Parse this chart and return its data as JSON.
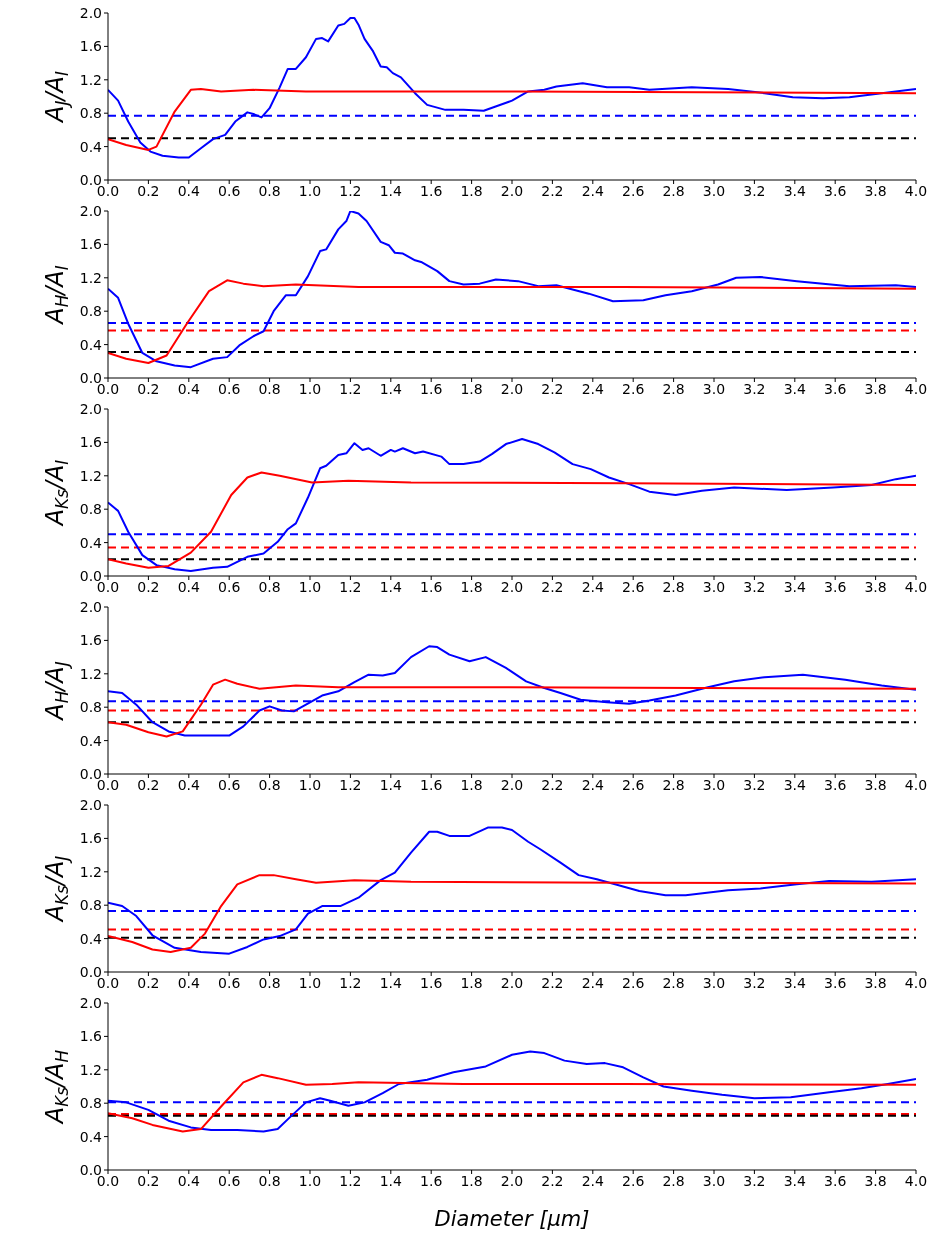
{
  "chart_data": [
    {
      "type": "line",
      "ylabel": "A$_{J}$/A$_{I}$",
      "xlim": [
        0,
        4
      ],
      "ylim": [
        0,
        2
      ],
      "xticks": [
        {
          "value": 0,
          "label": "0.0"
        },
        {
          "value": 0.2,
          "label": "0.2"
        },
        {
          "value": 0.4,
          "label": "0.4"
        },
        {
          "value": 0.6,
          "label": "0.6"
        },
        {
          "value": 0.8,
          "label": "0.8"
        },
        {
          "value": 1,
          "label": "1.0"
        },
        {
          "value": 1.2,
          "label": "1.2"
        },
        {
          "value": 1.4,
          "label": "1.4"
        },
        {
          "value": 1.6,
          "label": "1.6"
        },
        {
          "value": 1.8,
          "label": "1.8"
        },
        {
          "value": 2,
          "label": "2.0"
        },
        {
          "value": 2.2,
          "label": "2.2"
        },
        {
          "value": 2.4,
          "label": "2.4"
        },
        {
          "value": 2.6,
          "label": "2.6"
        },
        {
          "value": 2.8,
          "label": "2.8"
        },
        {
          "value": 3,
          "label": "3.0"
        },
        {
          "value": 3.2,
          "label": "3.2"
        },
        {
          "value": 3.4,
          "label": "3.4"
        },
        {
          "value": 3.6,
          "label": "3.6"
        },
        {
          "value": 3.8,
          "label": "3.8"
        },
        {
          "value": 4,
          "label": "4.0"
        }
      ],
      "yticks": [
        {
          "value": 0,
          "label": "0.0"
        },
        {
          "value": 0.4,
          "label": "0.4"
        },
        {
          "value": 0.8,
          "label": "0.8"
        },
        {
          "value": 1.2,
          "label": "1.2"
        },
        {
          "value": 1.6,
          "label": "1.6"
        },
        {
          "value": 2,
          "label": "2.0"
        }
      ],
      "grid": false,
      "line_style": "solid",
      "marker": "none",
      "series": [
        {
          "color": "#0000ff",
          "x": [
            0,
            0.05,
            0.1,
            0.16,
            0.21,
            0.27,
            0.35,
            0.4,
            0.46,
            0.52,
            0.58,
            0.63,
            0.69,
            0.72,
            0.76,
            0.8,
            0.85,
            0.89,
            0.93,
            0.98,
            1.03,
            1.06,
            1.09,
            1.14,
            1.17,
            1.2,
            1.22,
            1.24,
            1.27,
            1.31,
            1.35,
            1.38,
            1.41,
            1.45,
            1.52,
            1.58,
            1.67,
            1.76,
            1.86,
            2,
            2.08,
            2.16,
            2.22,
            2.35,
            2.47,
            2.58,
            2.68,
            2.89,
            3.07,
            3.25,
            3.39,
            3.54,
            3.67,
            3.83,
            4
          ],
          "values": [
            1.08,
            0.95,
            0.7,
            0.45,
            0.34,
            0.29,
            0.27,
            0.27,
            0.38,
            0.49,
            0.54,
            0.7,
            0.81,
            0.79,
            0.75,
            0.86,
            1.11,
            1.33,
            1.33,
            1.47,
            1.69,
            1.7,
            1.66,
            1.85,
            1.87,
            1.94,
            1.94,
            1.86,
            1.69,
            1.55,
            1.36,
            1.35,
            1.28,
            1.23,
            1.04,
            0.9,
            0.84,
            0.84,
            0.83,
            0.95,
            1.06,
            1.08,
            1.12,
            1.16,
            1.11,
            1.11,
            1.08,
            1.11,
            1.09,
            1.04,
            0.99,
            0.98,
            0.99,
            1.04,
            1.09
          ]
        },
        {
          "color": "#ff0000",
          "x": [
            0,
            0.09,
            0.2,
            0.24,
            0.33,
            0.41,
            0.46,
            0.56,
            0.72,
            0.98,
            2.03,
            4
          ],
          "values": [
            0.49,
            0.42,
            0.36,
            0.4,
            0.82,
            1.08,
            1.09,
            1.06,
            1.08,
            1.06,
            1.06,
            1.04
          ]
        }
      ],
      "ref_lines": [
        {
          "axis": "y",
          "value": 0.77,
          "color": "#0000ff",
          "line_style": "dashed"
        },
        {
          "axis": "y",
          "value": 0.5,
          "color": "#000000",
          "line_style": "dashed"
        }
      ]
    },
    {
      "type": "line",
      "ylabel": "A$_{H}$/A$_{I}$",
      "xlim": [
        0,
        4
      ],
      "ylim": [
        0,
        2
      ],
      "xticks": [
        {
          "value": 0,
          "label": "0.0"
        },
        {
          "value": 0.2,
          "label": "0.2"
        },
        {
          "value": 0.4,
          "label": "0.4"
        },
        {
          "value": 0.6,
          "label": "0.6"
        },
        {
          "value": 0.8,
          "label": "0.8"
        },
        {
          "value": 1,
          "label": "1.0"
        },
        {
          "value": 1.2,
          "label": "1.2"
        },
        {
          "value": 1.4,
          "label": "1.4"
        },
        {
          "value": 1.6,
          "label": "1.6"
        },
        {
          "value": 1.8,
          "label": "1.8"
        },
        {
          "value": 2,
          "label": "2.0"
        },
        {
          "value": 2.2,
          "label": "2.2"
        },
        {
          "value": 2.4,
          "label": "2.4"
        },
        {
          "value": 2.6,
          "label": "2.6"
        },
        {
          "value": 2.8,
          "label": "2.8"
        },
        {
          "value": 3,
          "label": "3.0"
        },
        {
          "value": 3.2,
          "label": "3.2"
        },
        {
          "value": 3.4,
          "label": "3.4"
        },
        {
          "value": 3.6,
          "label": "3.6"
        },
        {
          "value": 3.8,
          "label": "3.8"
        },
        {
          "value": 4,
          "label": "4.0"
        }
      ],
      "yticks": [
        {
          "value": 0,
          "label": "0.0"
        },
        {
          "value": 0.4,
          "label": "0.4"
        },
        {
          "value": 0.8,
          "label": "0.8"
        },
        {
          "value": 1.2,
          "label": "1.2"
        },
        {
          "value": 1.6,
          "label": "1.6"
        },
        {
          "value": 2,
          "label": "2.0"
        }
      ],
      "grid": false,
      "line_style": "solid",
      "marker": "none",
      "series": [
        {
          "color": "#0000ff",
          "x": [
            0,
            0.05,
            0.1,
            0.17,
            0.24,
            0.33,
            0.41,
            0.52,
            0.59,
            0.65,
            0.72,
            0.77,
            0.82,
            0.88,
            0.93,
            0.99,
            1.05,
            1.08,
            1.14,
            1.18,
            1.2,
            1.24,
            1.28,
            1.35,
            1.39,
            1.42,
            1.46,
            1.52,
            1.55,
            1.63,
            1.69,
            1.76,
            1.84,
            1.92,
            2.03,
            2.13,
            2.22,
            2.38,
            2.5,
            2.65,
            2.76,
            2.89,
            3.02,
            3.11,
            3.23,
            3.41,
            3.67,
            3.9,
            4
          ],
          "values": [
            1.07,
            0.96,
            0.65,
            0.3,
            0.2,
            0.15,
            0.13,
            0.23,
            0.25,
            0.39,
            0.5,
            0.56,
            0.8,
            0.99,
            0.99,
            1.22,
            1.52,
            1.54,
            1.78,
            1.88,
            2,
            1.97,
            1.88,
            1.63,
            1.59,
            1.5,
            1.49,
            1.41,
            1.39,
            1.28,
            1.16,
            1.12,
            1.13,
            1.18,
            1.16,
            1.1,
            1.11,
            1.01,
            0.92,
            0.93,
            0.99,
            1.04,
            1.12,
            1.2,
            1.21,
            1.16,
            1.1,
            1.11,
            1.09
          ]
        },
        {
          "color": "#ff0000",
          "x": [
            0,
            0.09,
            0.2,
            0.29,
            0.39,
            0.5,
            0.59,
            0.67,
            0.77,
            0.93,
            1.24,
            2.55,
            4
          ],
          "values": [
            0.3,
            0.23,
            0.18,
            0.27,
            0.65,
            1.04,
            1.17,
            1.13,
            1.1,
            1.12,
            1.09,
            1.09,
            1.07
          ]
        }
      ],
      "ref_lines": [
        {
          "axis": "y",
          "value": 0.66,
          "color": "#0000ff",
          "line_style": "dashed"
        },
        {
          "axis": "y",
          "value": 0.57,
          "color": "#ff0000",
          "line_style": "dashed"
        },
        {
          "axis": "y",
          "value": 0.31,
          "color": "#000000",
          "line_style": "dashed"
        }
      ]
    },
    {
      "type": "line",
      "ylabel": "A$_{Ks}$/A$_{I}$",
      "xlim": [
        0,
        4
      ],
      "ylim": [
        0,
        2
      ],
      "xticks": [
        {
          "value": 0,
          "label": "0.0"
        },
        {
          "value": 0.2,
          "label": "0.2"
        },
        {
          "value": 0.4,
          "label": "0.4"
        },
        {
          "value": 0.6,
          "label": "0.6"
        },
        {
          "value": 0.8,
          "label": "0.8"
        },
        {
          "value": 1,
          "label": "1.0"
        },
        {
          "value": 1.2,
          "label": "1.2"
        },
        {
          "value": 1.4,
          "label": "1.4"
        },
        {
          "value": 1.6,
          "label": "1.6"
        },
        {
          "value": 1.8,
          "label": "1.8"
        },
        {
          "value": 2,
          "label": "2.0"
        },
        {
          "value": 2.2,
          "label": "2.2"
        },
        {
          "value": 2.4,
          "label": "2.4"
        },
        {
          "value": 2.6,
          "label": "2.6"
        },
        {
          "value": 2.8,
          "label": "2.8"
        },
        {
          "value": 3,
          "label": "3.0"
        },
        {
          "value": 3.2,
          "label": "3.2"
        },
        {
          "value": 3.4,
          "label": "3.4"
        },
        {
          "value": 3.6,
          "label": "3.6"
        },
        {
          "value": 3.8,
          "label": "3.8"
        },
        {
          "value": 4,
          "label": "4.0"
        }
      ],
      "yticks": [
        {
          "value": 0,
          "label": "0.0"
        },
        {
          "value": 0.4,
          "label": "0.4"
        },
        {
          "value": 0.8,
          "label": "0.8"
        },
        {
          "value": 1.2,
          "label": "1.2"
        },
        {
          "value": 1.6,
          "label": "1.6"
        },
        {
          "value": 2,
          "label": "2.0"
        }
      ],
      "grid": false,
      "line_style": "solid",
      "marker": "none",
      "series": [
        {
          "color": "#0000ff",
          "x": [
            0,
            0.05,
            0.1,
            0.17,
            0.24,
            0.33,
            0.41,
            0.52,
            0.59,
            0.69,
            0.77,
            0.84,
            0.89,
            0.93,
            0.99,
            1.05,
            1.08,
            1.14,
            1.18,
            1.22,
            1.26,
            1.29,
            1.35,
            1.4,
            1.42,
            1.46,
            1.52,
            1.56,
            1.65,
            1.69,
            1.76,
            1.84,
            1.9,
            1.97,
            2.05,
            2.13,
            2.21,
            2.3,
            2.39,
            2.48,
            2.58,
            2.68,
            2.81,
            2.94,
            3.1,
            3.36,
            3.59,
            3.78,
            3.9,
            4
          ],
          "values": [
            0.88,
            0.78,
            0.53,
            0.25,
            0.13,
            0.08,
            0.06,
            0.1,
            0.11,
            0.23,
            0.27,
            0.41,
            0.56,
            0.63,
            0.94,
            1.29,
            1.32,
            1.45,
            1.47,
            1.59,
            1.51,
            1.53,
            1.44,
            1.51,
            1.49,
            1.53,
            1.47,
            1.49,
            1.43,
            1.34,
            1.34,
            1.37,
            1.46,
            1.58,
            1.64,
            1.58,
            1.48,
            1.34,
            1.28,
            1.18,
            1.1,
            1.01,
            0.97,
            1.02,
            1.06,
            1.03,
            1.06,
            1.09,
            1.16,
            1.2
          ]
        },
        {
          "color": "#ff0000",
          "x": [
            0,
            0.09,
            0.2,
            0.3,
            0.41,
            0.51,
            0.61,
            0.69,
            0.76,
            0.85,
            1.01,
            1.19,
            1.5,
            2.55,
            4
          ],
          "values": [
            0.2,
            0.15,
            0.1,
            0.12,
            0.28,
            0.53,
            0.97,
            1.18,
            1.24,
            1.2,
            1.12,
            1.14,
            1.12,
            1.11,
            1.09
          ]
        }
      ],
      "ref_lines": [
        {
          "axis": "y",
          "value": 0.5,
          "color": "#0000ff",
          "line_style": "dashed"
        },
        {
          "axis": "y",
          "value": 0.34,
          "color": "#ff0000",
          "line_style": "dashed"
        },
        {
          "axis": "y",
          "value": 0.2,
          "color": "#000000",
          "line_style": "dashed"
        }
      ]
    },
    {
      "type": "line",
      "ylabel": "A$_{H}$/A$_{J}$",
      "xlim": [
        0,
        4
      ],
      "ylim": [
        0,
        2
      ],
      "xticks": [
        {
          "value": 0,
          "label": "0.0"
        },
        {
          "value": 0.2,
          "label": "0.2"
        },
        {
          "value": 0.4,
          "label": "0.4"
        },
        {
          "value": 0.6,
          "label": "0.6"
        },
        {
          "value": 0.8,
          "label": "0.8"
        },
        {
          "value": 1,
          "label": "1.0"
        },
        {
          "value": 1.2,
          "label": "1.2"
        },
        {
          "value": 1.4,
          "label": "1.4"
        },
        {
          "value": 1.6,
          "label": "1.6"
        },
        {
          "value": 1.8,
          "label": "1.8"
        },
        {
          "value": 2,
          "label": "2.0"
        },
        {
          "value": 2.2,
          "label": "2.2"
        },
        {
          "value": 2.4,
          "label": "2.4"
        },
        {
          "value": 2.6,
          "label": "2.6"
        },
        {
          "value": 2.8,
          "label": "2.8"
        },
        {
          "value": 3,
          "label": "3.0"
        },
        {
          "value": 3.2,
          "label": "3.2"
        },
        {
          "value": 3.4,
          "label": "3.4"
        },
        {
          "value": 3.6,
          "label": "3.6"
        },
        {
          "value": 3.8,
          "label": "3.8"
        },
        {
          "value": 4,
          "label": "4.0"
        }
      ],
      "yticks": [
        {
          "value": 0,
          "label": "0.0"
        },
        {
          "value": 0.4,
          "label": "0.4"
        },
        {
          "value": 0.8,
          "label": "0.8"
        },
        {
          "value": 1.2,
          "label": "1.2"
        },
        {
          "value": 1.6,
          "label": "1.6"
        },
        {
          "value": 2,
          "label": "2.0"
        }
      ],
      "grid": false,
      "line_style": "solid",
      "marker": "none",
      "series": [
        {
          "color": "#0000ff",
          "x": [
            0,
            0.07,
            0.14,
            0.22,
            0.3,
            0.38,
            0.48,
            0.6,
            0.67,
            0.75,
            0.8,
            0.86,
            0.92,
            0.98,
            1.06,
            1.14,
            1.22,
            1.29,
            1.36,
            1.42,
            1.5,
            1.59,
            1.63,
            1.69,
            1.79,
            1.87,
            1.97,
            2.07,
            2.16,
            2.24,
            2.34,
            2.47,
            2.58,
            2.68,
            2.81,
            2.97,
            3.1,
            3.25,
            3.44,
            3.65,
            3.83,
            4
          ],
          "values": [
            0.99,
            0.97,
            0.83,
            0.62,
            0.51,
            0.46,
            0.46,
            0.46,
            0.57,
            0.76,
            0.81,
            0.76,
            0.75,
            0.83,
            0.94,
            0.99,
            1.1,
            1.19,
            1.18,
            1.21,
            1.4,
            1.53,
            1.52,
            1.43,
            1.35,
            1.4,
            1.27,
            1.11,
            1.03,
            0.97,
            0.89,
            0.86,
            0.84,
            0.88,
            0.94,
            1.04,
            1.11,
            1.16,
            1.19,
            1.13,
            1.06,
            1.01
          ]
        },
        {
          "color": "#ff0000",
          "x": [
            0,
            0.09,
            0.2,
            0.29,
            0.37,
            0.46,
            0.52,
            0.58,
            0.64,
            0.75,
            0.93,
            1.14,
            1.76,
            4
          ],
          "values": [
            0.62,
            0.59,
            0.5,
            0.45,
            0.51,
            0.83,
            1.07,
            1.13,
            1.08,
            1.02,
            1.06,
            1.04,
            1.04,
            1.02
          ]
        }
      ],
      "ref_lines": [
        {
          "axis": "y",
          "value": 0.87,
          "color": "#0000ff",
          "line_style": "dashed"
        },
        {
          "axis": "y",
          "value": 0.76,
          "color": "#ff0000",
          "line_style": "dashed"
        },
        {
          "axis": "y",
          "value": 0.62,
          "color": "#000000",
          "line_style": "dashed"
        }
      ]
    },
    {
      "type": "line",
      "ylabel": "A$_{Ks}$/A$_{J}$",
      "xlim": [
        0,
        4
      ],
      "ylim": [
        0,
        2
      ],
      "xticks": [
        {
          "value": 0,
          "label": "0.0"
        },
        {
          "value": 0.2,
          "label": "0.2"
        },
        {
          "value": 0.4,
          "label": "0.4"
        },
        {
          "value": 0.6,
          "label": "0.6"
        },
        {
          "value": 0.8,
          "label": "0.8"
        },
        {
          "value": 1,
          "label": "1.0"
        },
        {
          "value": 1.2,
          "label": "1.2"
        },
        {
          "value": 1.4,
          "label": "1.4"
        },
        {
          "value": 1.6,
          "label": "1.6"
        },
        {
          "value": 1.8,
          "label": "1.8"
        },
        {
          "value": 2,
          "label": "2.0"
        },
        {
          "value": 2.2,
          "label": "2.2"
        },
        {
          "value": 2.4,
          "label": "2.4"
        },
        {
          "value": 2.6,
          "label": "2.6"
        },
        {
          "value": 2.8,
          "label": "2.8"
        },
        {
          "value": 3,
          "label": "3.0"
        },
        {
          "value": 3.2,
          "label": "3.2"
        },
        {
          "value": 3.4,
          "label": "3.4"
        },
        {
          "value": 3.6,
          "label": "3.6"
        },
        {
          "value": 3.8,
          "label": "3.8"
        },
        {
          "value": 4,
          "label": "4.0"
        }
      ],
      "yticks": [
        {
          "value": 0,
          "label": "0.0"
        },
        {
          "value": 0.4,
          "label": "0.4"
        },
        {
          "value": 0.8,
          "label": "0.8"
        },
        {
          "value": 1.2,
          "label": "1.2"
        },
        {
          "value": 1.6,
          "label": "1.6"
        },
        {
          "value": 2,
          "label": "2.0"
        }
      ],
      "grid": false,
      "line_style": "solid",
      "marker": "none",
      "series": [
        {
          "color": "#0000ff",
          "x": [
            0,
            0.07,
            0.14,
            0.22,
            0.33,
            0.46,
            0.6,
            0.69,
            0.77,
            0.85,
            0.93,
            0.99,
            1.06,
            1.15,
            1.24,
            1.35,
            1.42,
            1.5,
            1.59,
            1.63,
            1.69,
            1.79,
            1.88,
            1.95,
            2,
            2.08,
            2.14,
            2.24,
            2.33,
            2.42,
            2.51,
            2.63,
            2.76,
            2.86,
            3.07,
            3.23,
            3.41,
            3.57,
            3.78,
            4
          ],
          "values": [
            0.83,
            0.79,
            0.67,
            0.44,
            0.29,
            0.24,
            0.22,
            0.3,
            0.39,
            0.43,
            0.51,
            0.7,
            0.79,
            0.79,
            0.89,
            1.1,
            1.19,
            1.43,
            1.68,
            1.68,
            1.63,
            1.63,
            1.73,
            1.73,
            1.7,
            1.56,
            1.47,
            1.31,
            1.16,
            1.11,
            1.05,
            0.97,
            0.92,
            0.92,
            0.98,
            1,
            1.05,
            1.09,
            1.08,
            1.11
          ]
        },
        {
          "color": "#ff0000",
          "x": [
            0,
            0.12,
            0.22,
            0.31,
            0.41,
            0.48,
            0.56,
            0.64,
            0.75,
            0.82,
            0.93,
            1.03,
            1.22,
            1.5,
            2.55,
            4
          ],
          "values": [
            0.43,
            0.36,
            0.27,
            0.24,
            0.29,
            0.46,
            0.79,
            1.05,
            1.16,
            1.16,
            1.11,
            1.07,
            1.1,
            1.08,
            1.07,
            1.06
          ]
        }
      ],
      "ref_lines": [
        {
          "axis": "y",
          "value": 0.73,
          "color": "#0000ff",
          "line_style": "dashed"
        },
        {
          "axis": "y",
          "value": 0.51,
          "color": "#ff0000",
          "line_style": "dashed"
        },
        {
          "axis": "y",
          "value": 0.41,
          "color": "#000000",
          "line_style": "dashed"
        }
      ]
    },
    {
      "type": "line",
      "ylabel": "A$_{Ks}$/A$_{H}$",
      "xlabel": "Diameter [μm]",
      "xlim": [
        0,
        4
      ],
      "ylim": [
        0,
        2
      ],
      "xticks": [
        {
          "value": 0,
          "label": "0.0"
        },
        {
          "value": 0.2,
          "label": "0.2"
        },
        {
          "value": 0.4,
          "label": "0.4"
        },
        {
          "value": 0.6,
          "label": "0.6"
        },
        {
          "value": 0.8,
          "label": "0.8"
        },
        {
          "value": 1,
          "label": "1.0"
        },
        {
          "value": 1.2,
          "label": "1.2"
        },
        {
          "value": 1.4,
          "label": "1.4"
        },
        {
          "value": 1.6,
          "label": "1.6"
        },
        {
          "value": 1.8,
          "label": "1.8"
        },
        {
          "value": 2,
          "label": "2.0"
        },
        {
          "value": 2.2,
          "label": "2.2"
        },
        {
          "value": 2.4,
          "label": "2.4"
        },
        {
          "value": 2.6,
          "label": "2.6"
        },
        {
          "value": 2.8,
          "label": "2.8"
        },
        {
          "value": 3,
          "label": "3.0"
        },
        {
          "value": 3.2,
          "label": "3.2"
        },
        {
          "value": 3.4,
          "label": "3.4"
        },
        {
          "value": 3.6,
          "label": "3.6"
        },
        {
          "value": 3.8,
          "label": "3.8"
        },
        {
          "value": 4,
          "label": "4.0"
        }
      ],
      "yticks": [
        {
          "value": 0,
          "label": "0.0"
        },
        {
          "value": 0.4,
          "label": "0.4"
        },
        {
          "value": 0.8,
          "label": "0.8"
        },
        {
          "value": 1.2,
          "label": "1.2"
        },
        {
          "value": 1.6,
          "label": "1.6"
        },
        {
          "value": 2,
          "label": "2.0"
        }
      ],
      "grid": false,
      "line_style": "solid",
      "marker": "none",
      "series": [
        {
          "color": "#0000ff",
          "x": [
            0,
            0.09,
            0.2,
            0.3,
            0.41,
            0.51,
            0.64,
            0.77,
            0.84,
            0.9,
            0.98,
            1.05,
            1.1,
            1.19,
            1.27,
            1.36,
            1.44,
            1.58,
            1.71,
            1.87,
            2,
            2.09,
            2.16,
            2.26,
            2.37,
            2.46,
            2.55,
            2.65,
            2.75,
            2.89,
            3.04,
            3.2,
            3.38,
            3.57,
            3.73,
            3.86,
            4
          ],
          "values": [
            0.83,
            0.81,
            0.72,
            0.59,
            0.51,
            0.48,
            0.48,
            0.46,
            0.49,
            0.63,
            0.81,
            0.86,
            0.83,
            0.77,
            0.81,
            0.92,
            1.03,
            1.08,
            1.17,
            1.24,
            1.38,
            1.42,
            1.4,
            1.31,
            1.27,
            1.28,
            1.23,
            1.11,
            1,
            0.95,
            0.9,
            0.86,
            0.87,
            0.93,
            0.98,
            1.03,
            1.09
          ]
        },
        {
          "color": "#ff0000",
          "x": [
            0,
            0.12,
            0.22,
            0.37,
            0.46,
            0.56,
            0.67,
            0.76,
            0.84,
            0.98,
            1.11,
            1.24,
            1.76,
            2.55,
            4
          ],
          "values": [
            0.68,
            0.62,
            0.54,
            0.46,
            0.49,
            0.76,
            1.05,
            1.14,
            1.1,
            1.02,
            1.03,
            1.05,
            1.03,
            1.03,
            1.02
          ]
        }
      ],
      "ref_lines": [
        {
          "axis": "y",
          "value": 0.81,
          "color": "#0000ff",
          "line_style": "dashed"
        },
        {
          "axis": "y",
          "value": 0.67,
          "color": "#ff0000",
          "line_style": "dashed"
        },
        {
          "axis": "y",
          "value": 0.65,
          "color": "#000000",
          "line_style": "dashed"
        }
      ]
    }
  ]
}
